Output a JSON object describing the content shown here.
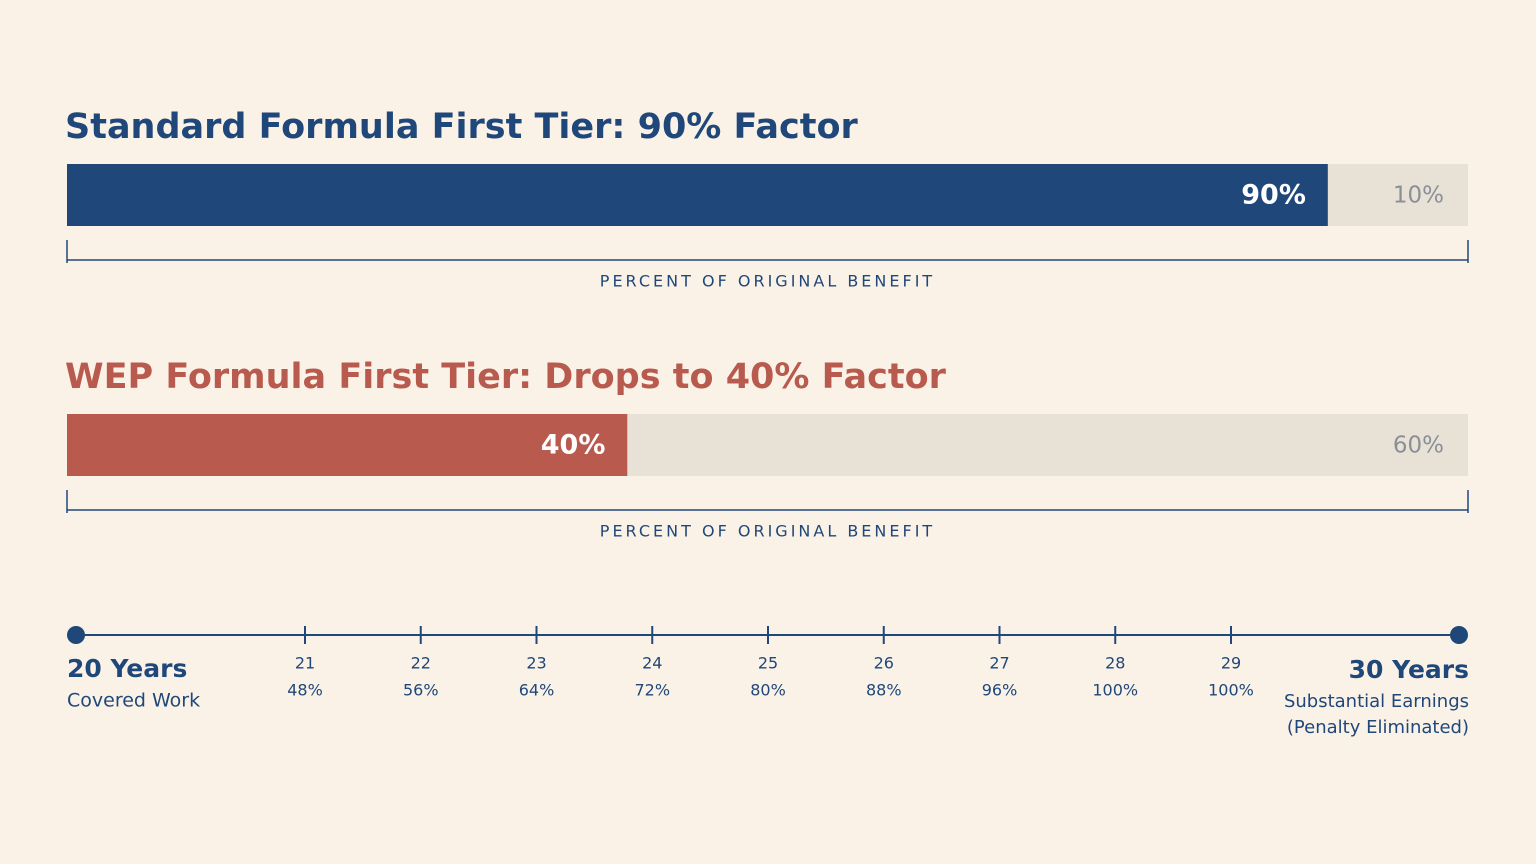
{
  "chart_data": [
    {
      "type": "stacked-bar",
      "title": "Standard Formula First Tier: 90% Factor",
      "title_color": "#1f477a",
      "xlabel": "PERCENT OF ORIGINAL BENEFIT",
      "xlim": [
        0,
        100
      ],
      "series": [
        {
          "color": "#1f477a",
          "values": [
            90
          ],
          "value_labels": [
            "90%"
          ]
        },
        {
          "color": "#e8e1d6",
          "values": [
            10
          ],
          "value_labels": [
            "10%"
          ]
        }
      ]
    },
    {
      "type": "stacked-bar",
      "title": "WEP Formula First Tier: Drops to 40% Factor",
      "title_color": "#b85a4e",
      "xlabel": "PERCENT OF ORIGINAL BENEFIT",
      "xlim": [
        0,
        100
      ],
      "series": [
        {
          "color": "#b85a4e",
          "values": [
            40
          ],
          "value_labels": [
            "40%"
          ]
        },
        {
          "color": "#e8e1d6",
          "values": [
            60
          ],
          "value_labels": [
            "60%"
          ]
        }
      ]
    },
    {
      "type": "timeline",
      "color": "#1f477a",
      "start": {
        "title": "20 Years",
        "subtitle": "Covered Work"
      },
      "end": {
        "title": "30 Years",
        "lines": [
          "Substantial Earnings",
          "(Penalty Eliminated)"
        ]
      },
      "x": [
        21,
        22,
        23,
        24,
        25,
        26,
        27,
        28,
        29
      ],
      "labels": [
        "48%",
        "56%",
        "64%",
        "72%",
        "80%",
        "88%",
        "96%",
        "100%",
        "100%"
      ]
    }
  ]
}
